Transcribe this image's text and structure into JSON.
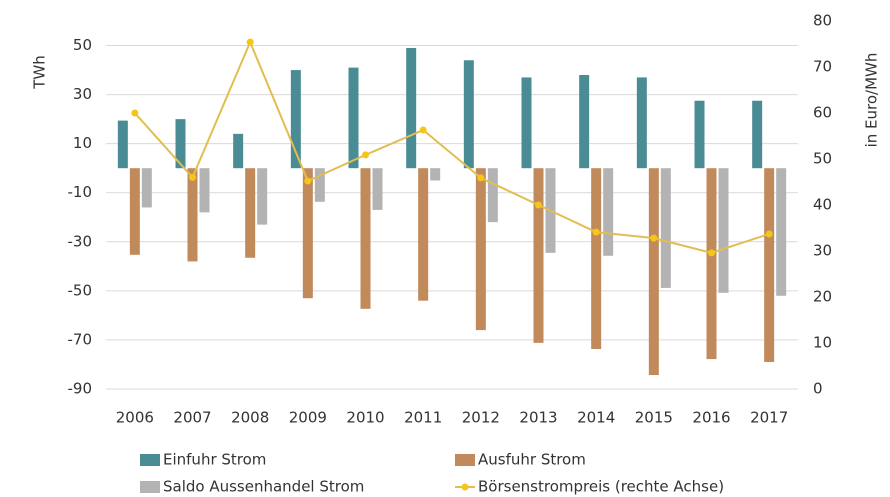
{
  "chart_data": {
    "type": "bar",
    "y_label": "TWh",
    "y2_label": "in Euro/MWh",
    "categories": [
      "2006",
      "2007",
      "2008",
      "2009",
      "2010",
      "2011",
      "2012",
      "2013",
      "2014",
      "2015",
      "2016",
      "2017"
    ],
    "series": [
      {
        "name": "Einfuhr Strom",
        "color": "#4a8c94",
        "values": [
          19.4,
          20,
          14,
          40,
          41,
          49,
          44,
          37,
          38,
          37,
          27.5,
          27.5
        ]
      },
      {
        "name": "Ausfuhr Strom",
        "color": "#c08a5b",
        "values": [
          -35.3,
          -38,
          -36.5,
          -53,
          -57.3,
          -54,
          -66,
          -71.2,
          -73.7,
          -84.3,
          -77.8,
          -79
        ]
      },
      {
        "name": "Saldo Aussenhandel Strom",
        "color": "#b3b3b3",
        "values": [
          -16,
          -18,
          -23,
          -13.7,
          -17,
          -5,
          -22,
          -34.5,
          -35.7,
          -48.8,
          -50.8,
          -52
        ]
      },
      {
        "name": "Börsenstrompreis (rechte Achse)",
        "color": "#e2bd4f",
        "marker_color": "#f5c518",
        "type": "line",
        "axis": "y2",
        "values": [
          60,
          46,
          75.4,
          45.2,
          50.9,
          56.3,
          45.9,
          40,
          34.1,
          32.8,
          29.6,
          33.7
        ]
      }
    ],
    "ylim": [
      -90,
      60
    ],
    "yticks": [
      50,
      30,
      10,
      -10,
      -30,
      -50,
      -70,
      -90
    ],
    "y2lim": [
      0,
      80
    ],
    "y2ticks": [
      80,
      70,
      60,
      50,
      40,
      30,
      20,
      10,
      0
    ],
    "grid": true
  }
}
